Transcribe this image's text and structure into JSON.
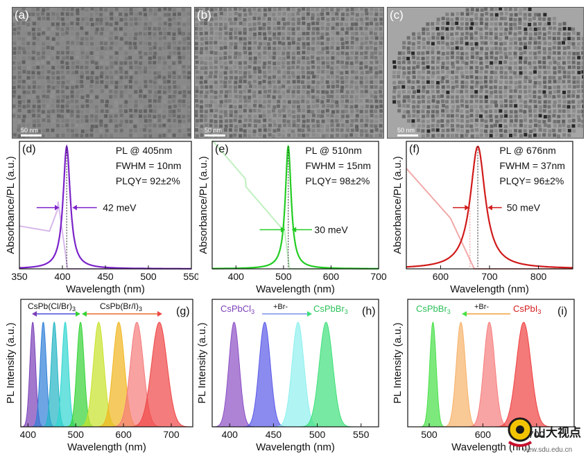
{
  "tem": [
    {
      "label": "(a)",
      "scale": "50 nm",
      "tone": "#8a8a8a"
    },
    {
      "label": "(b)",
      "scale": "50 nm",
      "tone": "#9a9a9a"
    },
    {
      "label": "(c)",
      "scale": "50 nm",
      "tone": "#a6a6a6"
    }
  ],
  "spectra": [
    {
      "label": "(d)",
      "lines": [
        "PL @ 405nm",
        "FWHM = 10nm",
        "PLQY= 92±2%"
      ],
      "annot": "42 meV",
      "color": "#7b22c9",
      "abs_color": "#d7b8ea",
      "ylabel": "Absorbance/PL (a.u.)",
      "xlabel": "Wavelength (nm)",
      "ticks": [
        "350",
        "400",
        "450",
        "500",
        "550"
      ]
    },
    {
      "label": "(e)",
      "lines": [
        "PL @ 510nm",
        "FWHM = 15nm",
        "PLQY= 98±2%"
      ],
      "annot": "30 meV",
      "color": "#22cc22",
      "abs_color": "#bff0bf",
      "ylabel": "Absorbance/PL (a.u.)",
      "xlabel": "Wavelength (nm)",
      "ticks": [
        "400",
        "500",
        "600",
        "700"
      ]
    },
    {
      "label": "(f)",
      "lines": [
        "PL @ 676nm",
        "FWHM = 37nm",
        "PLQY= 96±2%"
      ],
      "annot": "50 meV",
      "color": "#d11a1a",
      "abs_color": "#f2a8a8",
      "ylabel": "Absorbance/PL (a.u.)",
      "xlabel": "Wavelength (nm)",
      "ticks": [
        "600",
        "700",
        "800"
      ]
    }
  ],
  "pl": [
    {
      "label": "(g)",
      "ylabel": "PL Intensity (a.u.)",
      "xlabel": "Wavelength (nm)",
      "ticks": [
        "400",
        "500",
        "600",
        "700"
      ],
      "left_tag": "CsPb(Cl/Br)3",
      "right_tag": "CsPb(Br/I)3"
    },
    {
      "label": "(h)",
      "ylabel": "PL Intensity (a.u.)",
      "xlabel": "Wavelength (nm)",
      "ticks": [
        "400",
        "450",
        "500",
        "550"
      ],
      "left_tag": "CsPbCl3",
      "mid_tag": "+Br-",
      "right_tag": "CsPbBr3"
    },
    {
      "label": "(i)",
      "ylabel": "PL Intensity (a.u.)",
      "xlabel": "Wavelength (nm)",
      "ticks": [
        "500",
        "600",
        "700"
      ],
      "left_tag": "CsPbBr3",
      "mid_tag": "+Br-",
      "right_tag": "CsPbI3"
    }
  ],
  "chart_data": [
    {
      "type": "line",
      "title": "(d)",
      "xlabel": "Wavelength (nm)",
      "ylabel": "Absorbance/PL (a.u.)",
      "xlim": [
        350,
        550
      ],
      "series": [
        {
          "peak": 405,
          "fwhm": 10
        }
      ]
    },
    {
      "type": "line",
      "title": "(e)",
      "xlabel": "Wavelength (nm)",
      "ylabel": "Absorbance/PL (a.u.)",
      "xlim": [
        350,
        700
      ],
      "series": [
        {
          "peak": 510,
          "fwhm": 15
        }
      ]
    },
    {
      "type": "line",
      "title": "(f)",
      "xlabel": "Wavelength (nm)",
      "ylabel": "Absorbance/PL (a.u.)",
      "xlim": [
        530,
        870
      ],
      "series": [
        {
          "peak": 676,
          "fwhm": 37
        }
      ]
    },
    {
      "type": "area",
      "title": "(g)",
      "xlabel": "Wavelength (nm)",
      "ylabel": "PL Intensity (a.u.)",
      "xlim": [
        385,
        745
      ],
      "peaks": [
        410,
        432,
        455,
        478,
        510,
        548,
        590,
        628,
        675
      ]
    },
    {
      "type": "area",
      "title": "(h)",
      "xlabel": "Wavelength (nm)",
      "ylabel": "PL Intensity (a.u.)",
      "xlim": [
        380,
        570
      ],
      "peaks": [
        405,
        440,
        478,
        510
      ]
    },
    {
      "type": "area",
      "title": "(i)",
      "xlabel": "Wavelength (nm)",
      "ylabel": "PL Intensity (a.u.)",
      "xlim": [
        460,
        770
      ],
      "peaks": [
        507,
        559,
        612,
        676
      ]
    }
  ],
  "watermark": {
    "text": "山大视点",
    "url": "view.sdu.edu.cn"
  }
}
